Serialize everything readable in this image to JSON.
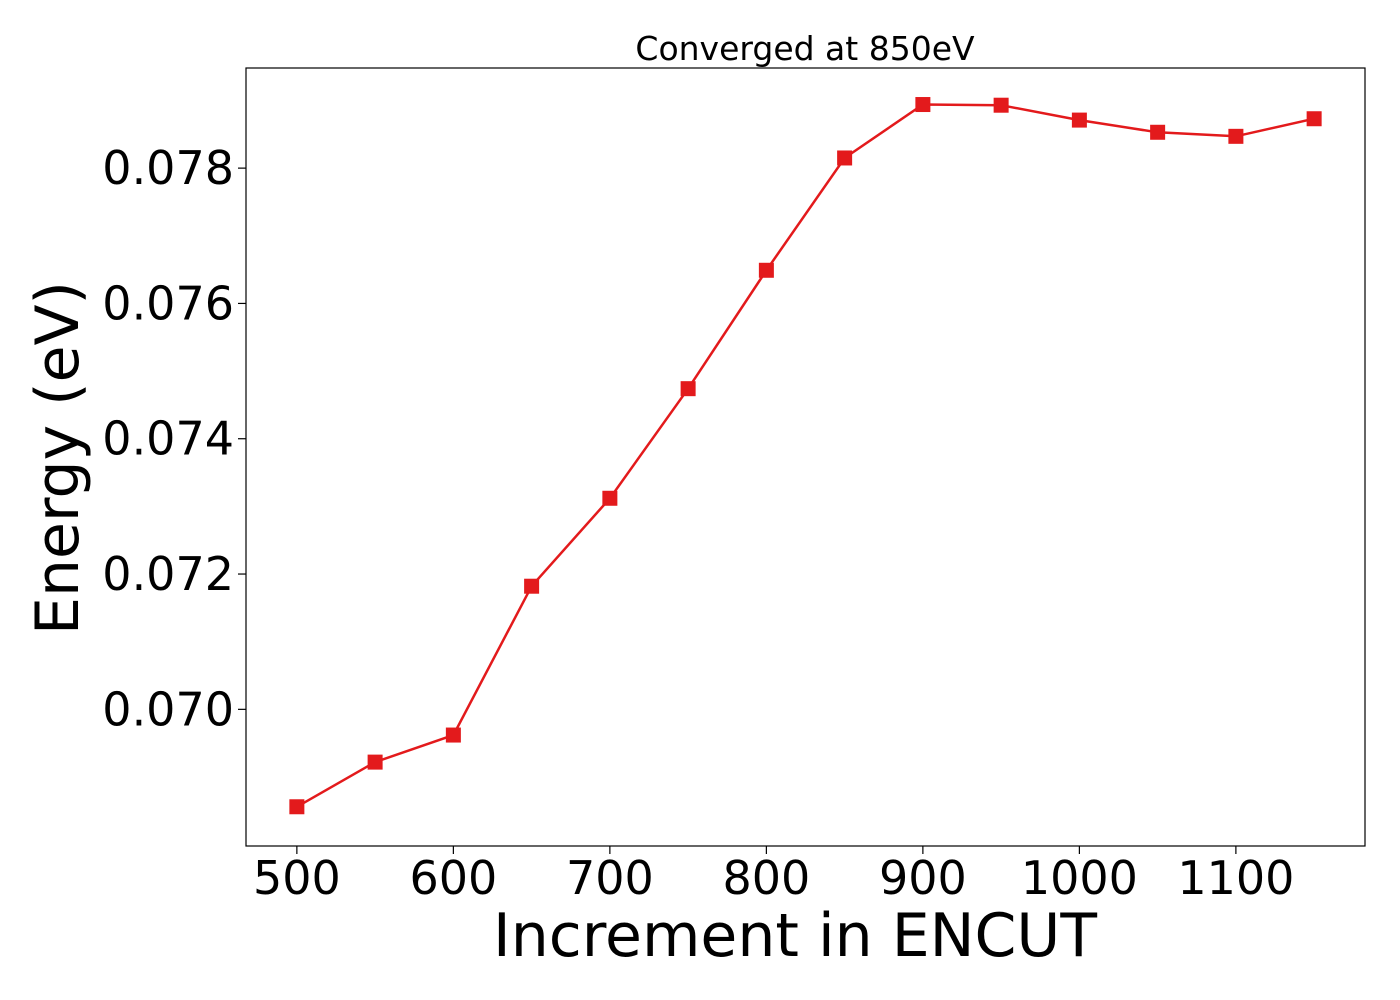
{
  "chart_data": {
    "type": "line",
    "title": "Converged at 850eV",
    "xlabel": "Increment in ENCUT",
    "ylabel": "Energy (eV)",
    "xlim": [
      467.5,
      1182.5
    ],
    "ylim": [
      0.06798,
      0.07948
    ],
    "xticks": [
      500,
      600,
      700,
      800,
      900,
      1000,
      1100
    ],
    "xtick_labels": [
      "500",
      "600",
      "700",
      "800",
      "900",
      "1000",
      "1100"
    ],
    "yticks": [
      0.07,
      0.072,
      0.074,
      0.076,
      0.078
    ],
    "ytick_labels": [
      "0.070",
      "0.072",
      "0.074",
      "0.076",
      "0.078"
    ],
    "grid": false,
    "legend": "none",
    "series": [
      {
        "color": "#e31a1c",
        "marker": "square",
        "x": [
          500,
          550,
          600,
          650,
          700,
          750,
          800,
          850,
          900,
          950,
          1000,
          1050,
          1100,
          1150
        ],
        "y": [
          0.06856,
          0.06922,
          0.06962,
          0.07182,
          0.07312,
          0.07474,
          0.07649,
          0.07815,
          0.07894,
          0.07893,
          0.07871,
          0.07853,
          0.07847,
          0.07873
        ]
      }
    ]
  }
}
